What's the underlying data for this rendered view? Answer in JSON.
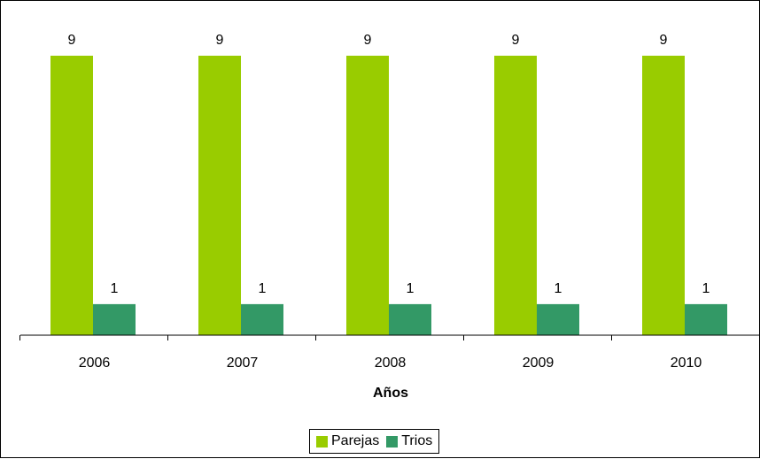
{
  "chart_data": {
    "type": "bar",
    "title": "",
    "xlabel": "Años",
    "ylabel": "",
    "categories": [
      "2006",
      "2007",
      "2008",
      "2009",
      "2010"
    ],
    "series": [
      {
        "name": "Parejas",
        "values": [
          9,
          9,
          9,
          9,
          9
        ],
        "color": "#99cc00"
      },
      {
        "name": "Trios",
        "values": [
          1,
          1,
          1,
          1,
          1
        ],
        "color": "#339966"
      }
    ],
    "ylim": [
      0,
      9.5
    ],
    "grid": false,
    "legend_position": "bottom",
    "data_labels": true
  }
}
